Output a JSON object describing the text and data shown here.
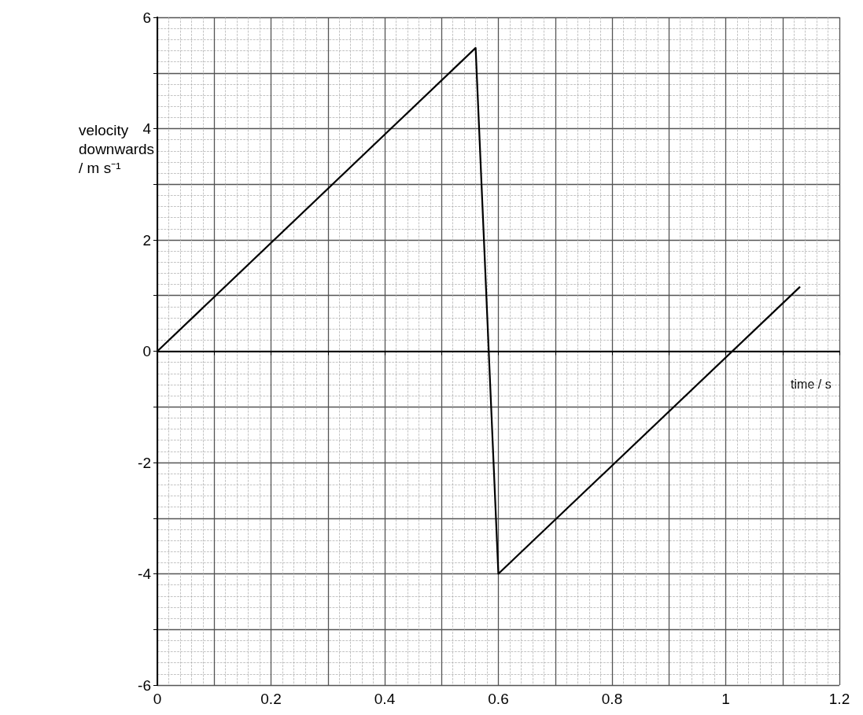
{
  "chart_data": {
    "type": "line",
    "xlabel": "time / s",
    "ylabel": "velocity\ndownwards\n/ m s⁻¹",
    "x": [
      0,
      0.56,
      0.6,
      1.13
    ],
    "series": [
      {
        "color": "#000000",
        "values": [
          0,
          5.45,
          -4.0,
          1.15
        ]
      }
    ],
    "xlim": [
      0,
      1.2
    ],
    "xticks": [
      0,
      {
        "value": 0.1,
        "label": null
      },
      0.2,
      {
        "value": 0.3,
        "label": null
      },
      0.4,
      {
        "value": 0.5,
        "label": null
      },
      0.6,
      {
        "value": 0.7,
        "label": null
      },
      0.8,
      {
        "value": 0.9,
        "label": null
      },
      1.0,
      {
        "value": 1.1,
        "label": null
      },
      1.2
    ],
    "ylim": [
      -6,
      6
    ],
    "yticks": [
      -6,
      {
        "value": -5,
        "label": null
      },
      -4,
      {
        "value": -3,
        "label": null
      },
      -2,
      {
        "value": -1,
        "label": null
      },
      0,
      {
        "value": 1,
        "label": null
      },
      2,
      {
        "value": 3,
        "label": null
      },
      4,
      {
        "value": 5,
        "label": null
      },
      6
    ],
    "grid": true,
    "marker": "none",
    "line_style": "solid"
  }
}
